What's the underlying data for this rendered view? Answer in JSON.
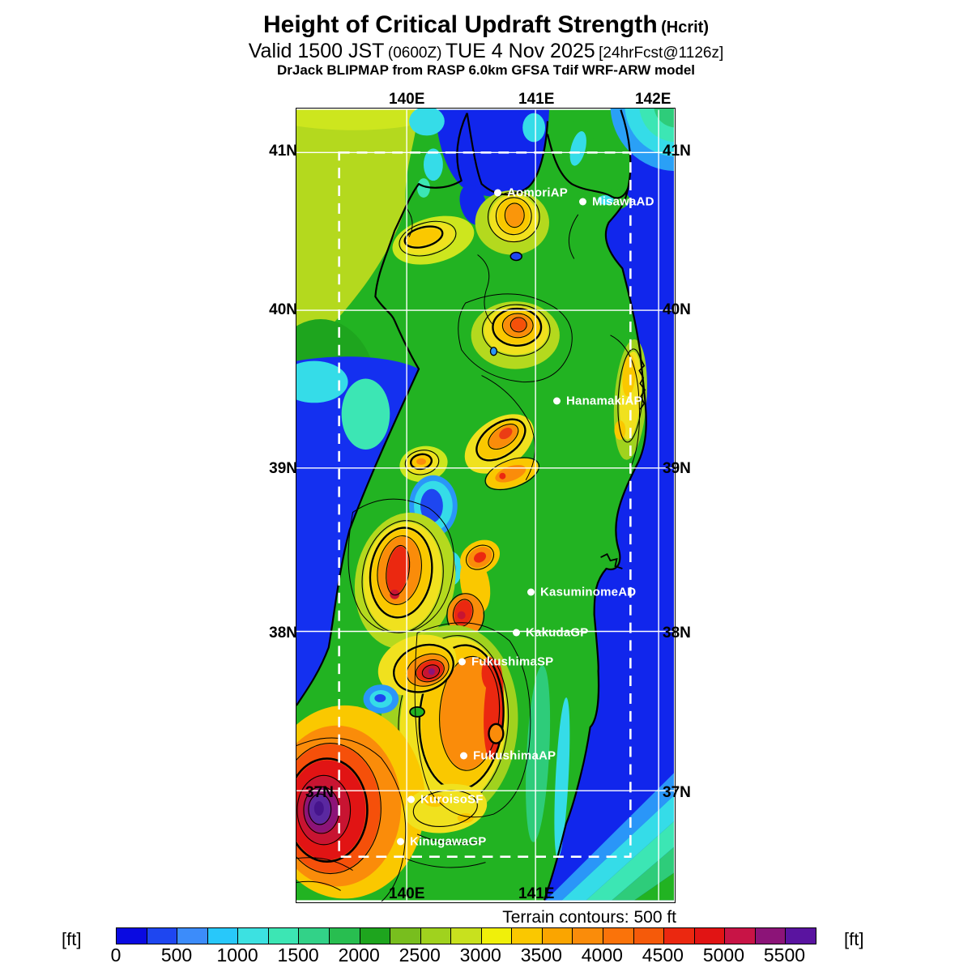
{
  "header": {
    "title": "Height of Critical Updraft Strength",
    "title_paren": "(Hcrit)",
    "valid_main": "Valid 1500 JST",
    "valid_zulu": "(0600Z)",
    "valid_date": "TUE 4 Nov 2025",
    "valid_tag": "[24hrFcst@1126z]",
    "model": "DrJack BLIPMAP from RASP 6.0km GFSA Tdif WRF-ARW model"
  },
  "map": {
    "top_lon": [
      "140E",
      "141E",
      "142E"
    ],
    "bottom_lon": [
      "140E",
      "141E"
    ],
    "left_lat": [
      "41N",
      "40N",
      "39N",
      "38N",
      "37N"
    ],
    "right_lat": [
      "41N",
      "40N",
      "39N",
      "38N",
      "37N"
    ],
    "stations": [
      {
        "name": "AomoriAP"
      },
      {
        "name": "MisawaAD"
      },
      {
        "name": "HanamakiAP"
      },
      {
        "name": "KasuminomeAD"
      },
      {
        "name": "KakudaGP"
      },
      {
        "name": "FukushimaSP"
      },
      {
        "name": "FukushimaAP"
      },
      {
        "name": "KuroisoSF"
      },
      {
        "name": "KinugawaGP"
      }
    ],
    "terrain_note": "Terrain contours: 500 ft"
  },
  "colorbar": {
    "unit": "[ft]",
    "ticks": [
      "0",
      "500",
      "1000",
      "1500",
      "2000",
      "2500",
      "3000",
      "3500",
      "4000",
      "4500",
      "5000",
      "5500"
    ]
  },
  "chart_data": {
    "type": "heatmap",
    "title": "Height of Critical Updraft Strength (Hcrit)",
    "valid": "Valid 1500 JST (0600Z) TUE 4 Nov 2025 [24hrFcst@1126z]",
    "model": "DrJack BLIPMAP from RASP 6.0km GFSA Tdif WRF-ARW model",
    "units": "ft",
    "x_ticks": [
      "140E",
      "141E",
      "142E"
    ],
    "y_ticks": [
      "41N",
      "40N",
      "39N",
      "38N",
      "37N"
    ],
    "scale_tick_interval_ft": 500,
    "scale_segment_interval_ft": 250,
    "scale_levels_ft": [
      0,
      250,
      500,
      750,
      1000,
      1250,
      1500,
      1750,
      2000,
      2250,
      2500,
      2750,
      3000,
      3250,
      3500,
      3750,
      4000,
      4250,
      4500,
      4750,
      5000,
      5250,
      5500
    ],
    "scale_colors": [
      "#0a0ae1",
      "#1e46f0",
      "#3c8cfa",
      "#28c8fa",
      "#3ce1e1",
      "#3ce6b4",
      "#32d288",
      "#28be50",
      "#1ea51e",
      "#78be1e",
      "#a0d21e",
      "#c8e11e",
      "#f0f00a",
      "#fac800",
      "#faa500",
      "#fa8c0a",
      "#fa730a",
      "#f55a0a",
      "#eb2810",
      "#e11414",
      "#c81446",
      "#8c1478",
      "#5a14a0"
    ],
    "terrain_contours": "500 ft",
    "stations": [
      "AomoriAP",
      "MisawaAD",
      "HanamakiAP",
      "KasuminomeAD",
      "KakudaGP",
      "FukushimaSP",
      "FukushimaAP",
      "KuroisoSF",
      "KinugawaGP"
    ]
  }
}
